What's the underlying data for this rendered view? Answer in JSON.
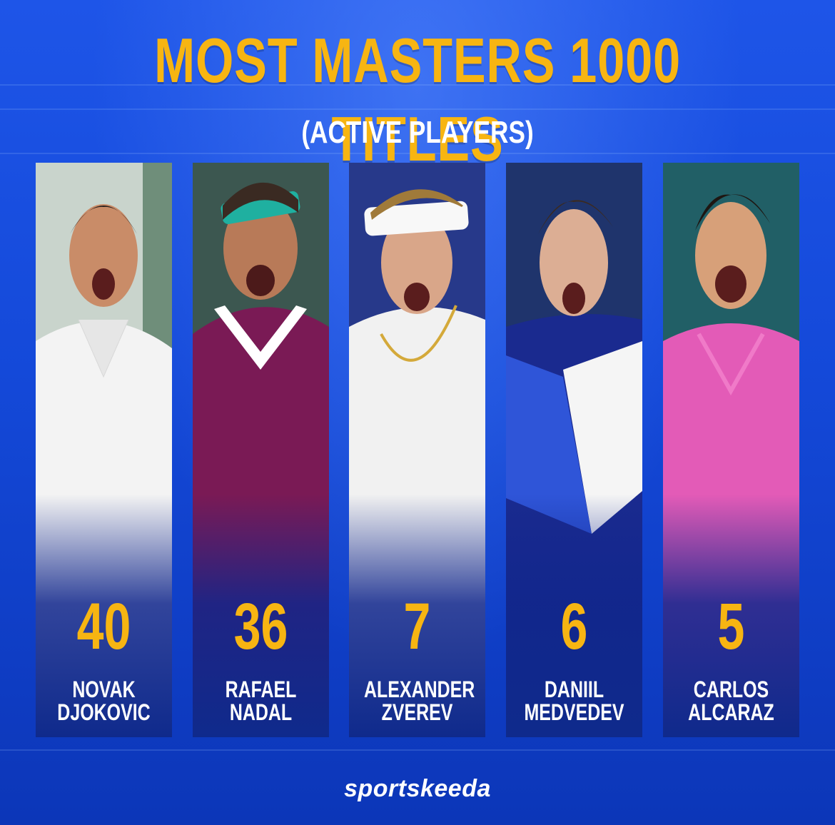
{
  "title": "MOST MASTERS 1000 TITLES",
  "subtitle": "(ACTIVE PLAYERS)",
  "accent_color": "#f7b512",
  "players": [
    {
      "titles": "40",
      "first": "NOVAK",
      "last": "DJOKOVIC",
      "shirt_color": "#f4f4f4",
      "bg_color": "#cfd8d0"
    },
    {
      "titles": "36",
      "first": "RAFAEL",
      "last": "NADAL",
      "shirt_color": "#7a1a55",
      "bg_color": "#3e5a52"
    },
    {
      "titles": "7",
      "first": "ALEXANDER",
      "last": "ZVEREV",
      "shirt_color": "#f2f2f2",
      "bg_color": "#2a3c8e"
    },
    {
      "titles": "6",
      "first": "DANIIL",
      "last": "MEDVEDEV",
      "shirt_color": "#1b2a8f",
      "bg_color": "#20356e"
    },
    {
      "titles": "5",
      "first": "CARLOS",
      "last": "ALCARAZ",
      "shirt_color": "#e45ab8",
      "bg_color": "#1f5d66"
    }
  ],
  "brand": "sportskeeda"
}
